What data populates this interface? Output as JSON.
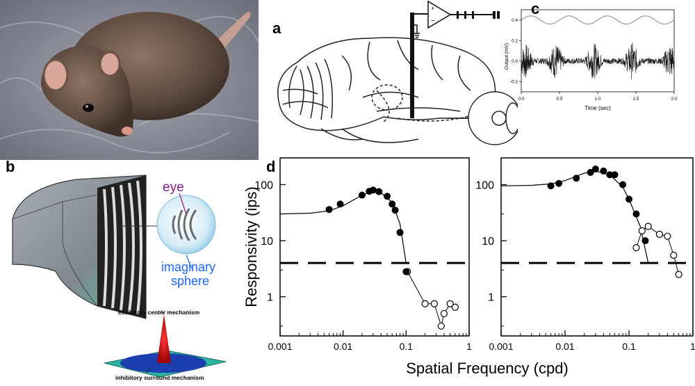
{
  "panel_labels": {
    "a": "a",
    "b": "b",
    "c": "c",
    "d": "d"
  },
  "panel_b": {
    "eye_label": "eye",
    "sphere_label_line1": "imaginary",
    "sphere_label_line2": "sphere",
    "excitatory_label": "excitatory center mechanism",
    "inhibitory_label": "inhibitory surround mechanism"
  },
  "colors": {
    "eye_label": "#8a1a8a",
    "sphere_label": "#1e66ff",
    "dog_fill": "#ff2b2b",
    "surround_fill": "#1b3fae"
  },
  "chart_data": [
    {
      "type": "line",
      "panel": "c",
      "xlabel": "Time (sec)",
      "ylabel": "Output (mV)",
      "xlim": [
        0.0,
        2.0
      ],
      "ylim": [
        -0.3,
        0.5
      ],
      "x_ticks": [
        0.0,
        0.5,
        1.0,
        1.5,
        2.0
      ],
      "y_ticks": [
        -0.2,
        0.0,
        0.2,
        0.4
      ],
      "x_tick_labels": [
        "0.0",
        "0.5",
        "1.0",
        "1.5",
        "2.0"
      ],
      "y_tick_labels": [
        "-0.2",
        "0.0",
        "0.2",
        "0.4"
      ],
      "stimulus": {
        "baseline": 0.4,
        "amplitude": 0.04,
        "frequency_hz": 2
      },
      "response": {
        "baseline": 0.0,
        "burst_centers": [
          0.05,
          0.45,
          0.95,
          1.45,
          1.95
        ]
      }
    },
    {
      "type": "scatter",
      "panel": "d-left",
      "xscale": "log",
      "yscale": "log",
      "xlim": [
        0.001,
        1
      ],
      "ylim": [
        0.2,
        300
      ],
      "x_ticks": [
        0.001,
        0.01,
        0.1,
        1
      ],
      "x_tick_labels": [
        "0.001",
        "0.01",
        "0.1",
        "1"
      ],
      "y_ticks": [
        1,
        10,
        100
      ],
      "y_tick_labels": [
        "1",
        "10",
        "100"
      ],
      "threshold": 4,
      "filled": {
        "x": [
          0.006,
          0.009,
          0.02,
          0.026,
          0.03,
          0.037,
          0.05,
          0.06,
          0.067,
          0.08,
          0.1
        ],
        "y": [
          36,
          45,
          65,
          76,
          80,
          75,
          62,
          45,
          35,
          14,
          2.8
        ]
      },
      "open": {
        "x": [
          0.105,
          0.2,
          0.28,
          0.36,
          0.4,
          0.5,
          0.6
        ],
        "y": [
          2.8,
          0.75,
          0.75,
          0.3,
          0.5,
          0.75,
          0.65
        ]
      },
      "fit_curve": {
        "x": [
          0.001,
          0.003,
          0.006,
          0.01,
          0.02,
          0.03,
          0.04,
          0.06,
          0.08,
          0.1
        ],
        "y": [
          30,
          31,
          34,
          42,
          65,
          76,
          72,
          48,
          20,
          4
        ]
      }
    },
    {
      "type": "scatter",
      "panel": "d-right",
      "xscale": "log",
      "yscale": "log",
      "xlim": [
        0.001,
        1
      ],
      "ylim": [
        0.2,
        300
      ],
      "x_ticks": [
        0.001,
        0.01,
        0.1,
        1
      ],
      "x_tick_labels": [
        "0.001",
        "0.01",
        "0.1",
        "1"
      ],
      "y_ticks": [
        1,
        10,
        100
      ],
      "y_tick_labels": [
        "1",
        "10",
        "100"
      ],
      "threshold": 4,
      "filled": {
        "x": [
          0.006,
          0.008,
          0.015,
          0.025,
          0.03,
          0.04,
          0.05,
          0.06,
          0.08,
          0.1,
          0.13,
          0.18
        ],
        "y": [
          95,
          105,
          130,
          165,
          190,
          175,
          150,
          150,
          100,
          55,
          30,
          10
        ]
      },
      "open": {
        "x": [
          0.13,
          0.16,
          0.2,
          0.3,
          0.4,
          0.5,
          0.6
        ],
        "y": [
          7.5,
          15,
          18,
          13,
          12,
          5.5,
          2.5
        ]
      },
      "fit_curve": {
        "x": [
          0.001,
          0.003,
          0.006,
          0.01,
          0.02,
          0.03,
          0.05,
          0.08,
          0.1,
          0.15,
          0.2
        ],
        "y": [
          95,
          97,
          103,
          118,
          160,
          175,
          150,
          90,
          55,
          18,
          4
        ]
      }
    }
  ],
  "shared_axes": {
    "ylabel": "Responsivity (ips)",
    "xlabel": "Spatial Frequency (cpd)"
  }
}
